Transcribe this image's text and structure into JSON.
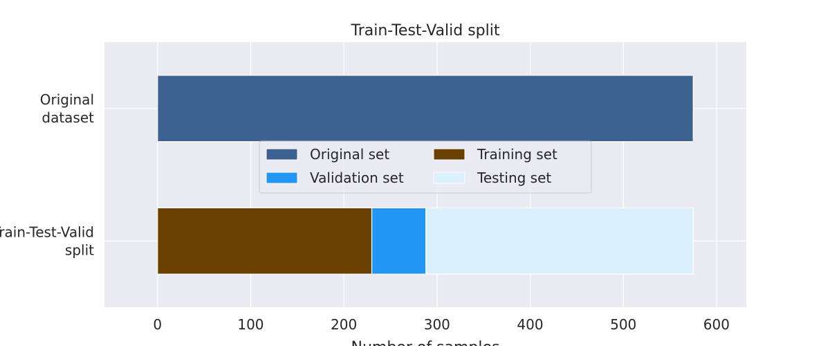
{
  "chart_data": {
    "type": "bar",
    "orientation": "horizontal",
    "stacked": true,
    "title": "Train-Test-Valid split",
    "xlabel": "Number of samples",
    "ylabel": "",
    "xlim": [
      -57,
      632
    ],
    "x_ticks": [
      0,
      100,
      200,
      300,
      400,
      500,
      600
    ],
    "categories": [
      [
        "Original",
        "dataset"
      ],
      [
        "Train-Test-Valid",
        "split"
      ]
    ],
    "series": [
      {
        "name": "Original set",
        "color": "#3d6191",
        "values": [
          575,
          0
        ]
      },
      {
        "name": "Training set",
        "color": "#694000",
        "values": [
          0,
          230
        ]
      },
      {
        "name": "Validation set",
        "color": "#2196f3",
        "values": [
          0,
          58
        ]
      },
      {
        "name": "Testing set",
        "color": "#dbf0fd",
        "values": [
          0,
          287
        ]
      }
    ],
    "grid": true,
    "legend_position": "center",
    "legend_columns": 2
  }
}
